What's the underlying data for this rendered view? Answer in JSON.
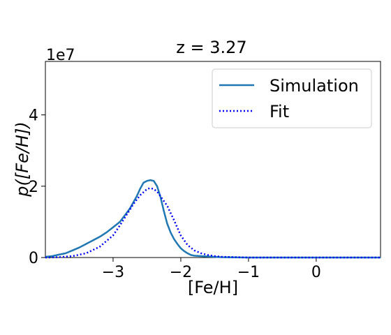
{
  "chart_data": {
    "type": "line",
    "title": "z = 3.27",
    "xlabel": "[Fe/H]",
    "ylabel": "p([Fe/H])",
    "y_scale_label": "1e7",
    "xlim": [
      -4.0,
      0.95
    ],
    "ylim": [
      0,
      5.5
    ],
    "x_ticks": [
      -3,
      -2,
      -1,
      0
    ],
    "x_tick_labels": [
      "−3",
      "−2",
      "−1",
      "0"
    ],
    "y_ticks": [
      0,
      2,
      4
    ],
    "y_tick_labels": [
      "0",
      "2",
      "4"
    ],
    "grid": false,
    "legend_position": "top-right",
    "series": [
      {
        "name": "Simulation",
        "color": "#1f77b4",
        "style": "solid",
        "x": [
          -4.0,
          -3.9,
          -3.8,
          -3.7,
          -3.6,
          -3.5,
          -3.4,
          -3.3,
          -3.2,
          -3.1,
          -3.0,
          -2.9,
          -2.8,
          -2.75,
          -2.7,
          -2.65,
          -2.6,
          -2.55,
          -2.5,
          -2.45,
          -2.4,
          -2.35,
          -2.3,
          -2.25,
          -2.2,
          -2.15,
          -2.1,
          -2.05,
          -2.0,
          -1.95,
          -1.9,
          -1.85,
          -1.8,
          -1.7,
          -1.6,
          -1.5,
          -1.4,
          -1.2,
          -1.0,
          -0.5,
          0.0,
          0.5,
          0.95
        ],
        "y": [
          0.02,
          0.04,
          0.08,
          0.12,
          0.2,
          0.28,
          0.38,
          0.48,
          0.58,
          0.7,
          0.85,
          1.0,
          1.25,
          1.38,
          1.55,
          1.72,
          1.93,
          2.1,
          2.15,
          2.17,
          2.15,
          2.0,
          1.7,
          1.3,
          0.95,
          0.7,
          0.52,
          0.38,
          0.26,
          0.18,
          0.12,
          0.07,
          0.05,
          0.04,
          0.03,
          0.02,
          0.01,
          0.005,
          0.0,
          0.0,
          0.0,
          0.0,
          0.0
        ]
      },
      {
        "name": "Fit",
        "color": "#0000ff",
        "style": "dotted",
        "x": [
          -4.0,
          -3.8,
          -3.6,
          -3.4,
          -3.2,
          -3.0,
          -2.9,
          -2.8,
          -2.7,
          -2.6,
          -2.5,
          -2.45,
          -2.4,
          -2.35,
          -2.3,
          -2.2,
          -2.1,
          -2.0,
          -1.9,
          -1.8,
          -1.7,
          -1.6,
          -1.5,
          -1.4,
          -1.2,
          -1.0,
          -0.5,
          0.0,
          0.95
        ],
        "y": [
          0.0,
          0.01,
          0.04,
          0.12,
          0.3,
          0.62,
          0.9,
          1.2,
          1.5,
          1.75,
          1.92,
          1.95,
          1.92,
          1.85,
          1.72,
          1.45,
          1.05,
          0.62,
          0.35,
          0.2,
          0.12,
          0.07,
          0.04,
          0.02,
          0.01,
          0.0,
          0.0,
          0.0,
          0.0
        ]
      }
    ]
  }
}
